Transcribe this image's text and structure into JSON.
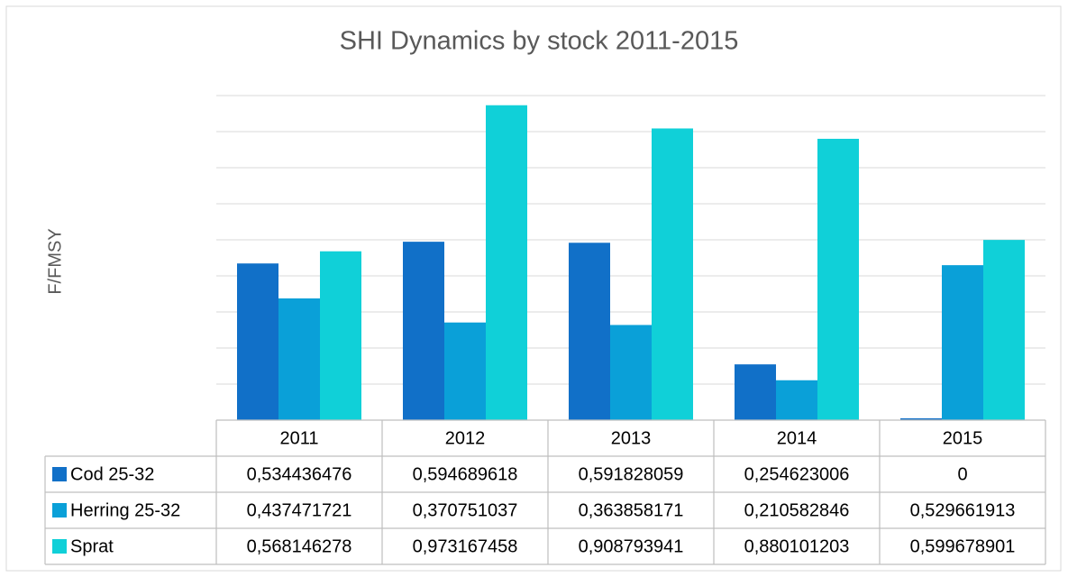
{
  "chart_data": {
    "type": "bar",
    "title": "SHI Dynamics by stock 2011-2015",
    "y_label": "F/FMSY",
    "categories": [
      "2011",
      "2012",
      "2013",
      "2014",
      "2015"
    ],
    "series": [
      {
        "name": "Cod 25-32",
        "color": "#1170c8",
        "values": [
          0.534436476,
          0.594689618,
          0.591828059,
          0.254623006,
          0
        ],
        "value_labels": [
          "0,534436476",
          "0,594689618",
          "0,591828059",
          "0,254623006",
          "0"
        ]
      },
      {
        "name": "Herring 25-32",
        "color": "#0aa0d8",
        "values": [
          0.437471721,
          0.370751037,
          0.363858171,
          0.210582846,
          0.529661913
        ],
        "value_labels": [
          "0,437471721",
          "0,370751037",
          "0,363858171",
          "0,210582846",
          "0,529661913"
        ]
      },
      {
        "name": "Sprat",
        "color": "#10d0d8",
        "values": [
          0.568146278,
          0.973167458,
          0.908793941,
          0.880101203,
          0.599678901
        ],
        "value_labels": [
          "0,568146278",
          "0,973167458",
          "0,908793941",
          "0,880101203",
          "0,599678901"
        ]
      }
    ],
    "ylim": [
      0.1,
      1.0
    ],
    "yticks": [
      0.1,
      0.2,
      0.3,
      0.4,
      0.5,
      0.6,
      0.7,
      0.8,
      0.9,
      1.0
    ],
    "grid": true,
    "data_table": true
  }
}
